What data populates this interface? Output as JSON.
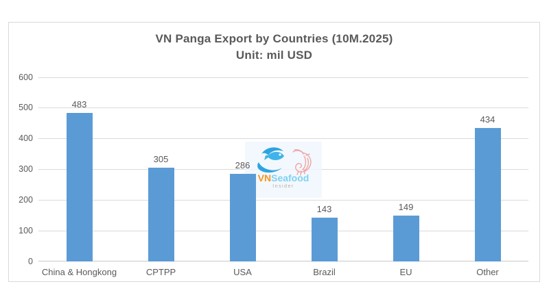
{
  "chart_data": {
    "type": "bar",
    "title": "VN Panga Export by Countries (10M.2025)",
    "subtitle": "Unit: mil USD",
    "categories": [
      "China & Hongkong",
      "CPTPP",
      "USA",
      "Brazil",
      "EU",
      "Other"
    ],
    "values": [
      483,
      305,
      286,
      143,
      149,
      434
    ],
    "ylim": [
      0,
      600
    ],
    "yticks": [
      0,
      100,
      200,
      300,
      400,
      500,
      600
    ],
    "grid": true,
    "legend": "none",
    "bar_color": "#5B9BD5",
    "text_color": "#595959",
    "gridline_color": "#D9D9D9"
  },
  "watermark": {
    "brand_prefix": "VN",
    "brand_suffix": "Seafood",
    "tagline": "Insider",
    "prefix_color": "#F7941D",
    "suffix_color": "#7FD0F2",
    "fish_color": "#2FA3DF",
    "shrimp_color": "#F2A3A3"
  }
}
